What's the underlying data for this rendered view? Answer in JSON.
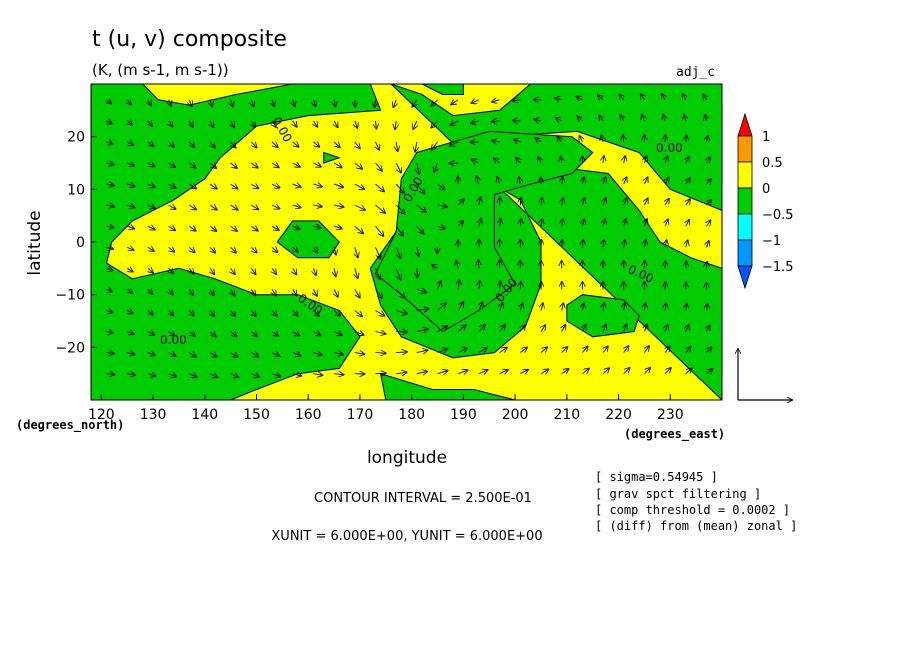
{
  "chart_data": {
    "type": "contour",
    "title": "t (u, v) composite",
    "subtitle": "(K, (m s-1, m s-1))",
    "tag": "adj_c",
    "xlabel": "longitude",
    "ylabel": "latitude",
    "x_unit_label": "(degrees_east)",
    "y_unit_label": "(degrees_north)",
    "xlim": [
      118,
      240
    ],
    "ylim": [
      -30,
      30
    ],
    "x_ticks": [
      120,
      130,
      140,
      150,
      160,
      170,
      180,
      190,
      200,
      210,
      220,
      230
    ],
    "y_ticks": [
      20,
      10,
      0,
      -10,
      -20
    ],
    "x_tick_labels": [
      "120",
      "130",
      "140",
      "150",
      "160",
      "170",
      "180",
      "190",
      "200",
      "210",
      "220",
      "230"
    ],
    "y_tick_labels": [
      "20",
      "10",
      "0",
      "−10",
      "−20"
    ],
    "contour_interval": "CONTOUR INTERVAL = 2.500E-01",
    "vector_units": "XUNIT = 6.000E+00, YUNIT = 6.000E+00",
    "colorbar": {
      "labels": [
        "1",
        "0.5",
        "0",
        "−0.5",
        "−1",
        "−1.5"
      ],
      "colors": [
        "#ff0000",
        "#ff9900",
        "#ffff00",
        "#00cc00",
        "#00ffff",
        "#0099ff",
        "#0055ff"
      ]
    },
    "zero_contour_labels": [
      "0.00",
      "0.00",
      "0.00",
      "0.00",
      "0.00",
      "0.00",
      "0.00"
    ],
    "notes": [
      "[ sigma=0.54945 ]",
      "[ grav spct filtering ]",
      "[ comp threshold = 0.0002 ]",
      "[ (diff) from (mean) zonal ]"
    ],
    "fill_colors": {
      "positive": "#ffff00",
      "negative": "#00cc00"
    },
    "negative_regions": [
      [
        [
          118,
          30
        ],
        [
          128,
          30
        ],
        [
          131,
          27
        ],
        [
          137,
          26
        ],
        [
          146,
          28
        ],
        [
          157,
          30
        ],
        [
          172,
          30
        ],
        [
          174,
          25
        ],
        [
          160,
          24
        ],
        [
          150,
          22
        ],
        [
          143,
          16
        ],
        [
          140,
          12
        ],
        [
          134,
          8
        ],
        [
          126,
          4
        ],
        [
          122,
          0
        ],
        [
          121,
          -4
        ],
        [
          126,
          -7
        ],
        [
          135,
          -5
        ],
        [
          142,
          -7
        ],
        [
          150,
          -10
        ],
        [
          158,
          -10
        ],
        [
          166,
          -13
        ],
        [
          170,
          -18
        ],
        [
          166,
          -24
        ],
        [
          158,
          -25
        ],
        [
          150,
          -28
        ],
        [
          145,
          -30
        ],
        [
          118,
          -30
        ]
      ],
      [
        [
          176,
          30
        ],
        [
          182,
          28
        ],
        [
          188,
          24
        ],
        [
          197,
          25
        ],
        [
          203,
          30
        ],
        [
          212,
          30
        ],
        [
          224,
          30
        ],
        [
          232,
          30
        ],
        [
          240,
          30
        ],
        [
          240,
          6
        ],
        [
          230,
          10
        ],
        [
          224,
          17
        ],
        [
          212,
          21
        ],
        [
          196,
          20
        ],
        [
          186,
          16
        ],
        [
          180,
          9
        ],
        [
          177,
          2
        ],
        [
          172,
          -5
        ],
        [
          174,
          -12
        ],
        [
          178,
          -18
        ],
        [
          188,
          -22
        ],
        [
          196,
          -21
        ],
        [
          202,
          -16
        ],
        [
          205,
          -8
        ],
        [
          205,
          0
        ],
        [
          201,
          8
        ],
        [
          194,
          12
        ],
        [
          198,
          16
        ],
        [
          210,
          14
        ],
        [
          218,
          13
        ],
        [
          224,
          6
        ],
        [
          228,
          0
        ],
        [
          234,
          -3
        ],
        [
          240,
          -5
        ],
        [
          240,
          -30
        ],
        [
          200,
          -30
        ],
        [
          192,
          -28
        ],
        [
          184,
          -28
        ],
        [
          174,
          -25
        ],
        [
          175,
          -30
        ],
        [
          240,
          -30
        ]
      ],
      [
        [
          181,
          17
        ],
        [
          195,
          21
        ],
        [
          211,
          20
        ],
        [
          215,
          17
        ],
        [
          211,
          13
        ],
        [
          203,
          11
        ],
        [
          196,
          9
        ],
        [
          196,
          -1
        ],
        [
          200,
          -8
        ],
        [
          193,
          -13
        ],
        [
          186,
          -17
        ],
        [
          178,
          -10
        ],
        [
          173,
          -6
        ],
        [
          177,
          2
        ],
        [
          178,
          12
        ]
      ],
      [
        [
          210,
          -12
        ],
        [
          213,
          -10
        ],
        [
          221,
          -11
        ],
        [
          224,
          -14
        ],
        [
          223,
          -17
        ],
        [
          215,
          -18
        ],
        [
          210,
          -15
        ]
      ],
      [
        [
          154,
          0
        ],
        [
          157,
          4
        ],
        [
          162,
          4
        ],
        [
          166,
          0
        ],
        [
          164,
          -3
        ],
        [
          158,
          -3
        ]
      ],
      [
        [
          163,
          17
        ],
        [
          166,
          16
        ],
        [
          163,
          15
        ]
      ],
      [
        [
          182,
          30
        ],
        [
          186,
          28
        ],
        [
          190,
          28
        ],
        [
          190,
          30
        ]
      ]
    ],
    "wind_vectors": "u/v field on a 6-degree grid: cyclonic-looking circulation centered near (185, 12) and (180, -8), convergent flow toward 170-190 longitude"
  }
}
